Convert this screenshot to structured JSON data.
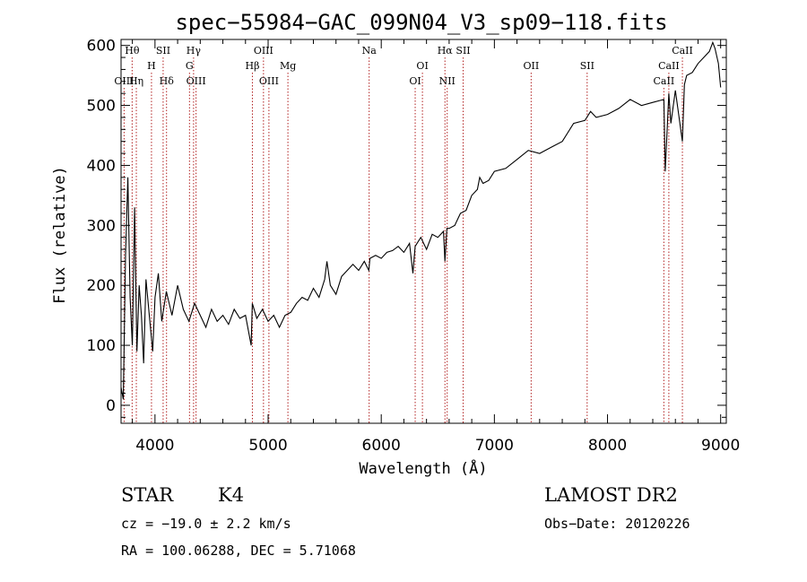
{
  "chart_data": {
    "type": "line",
    "title": "spec−55984−GAC_099N04_V3_sp09−118.fits",
    "xlabel": "Wavelength (Å)",
    "ylabel": "Flux (relative)",
    "xlim": [
      3700,
      9050
    ],
    "ylim": [
      -30,
      610
    ],
    "xticks": [
      4000,
      5000,
      6000,
      7000,
      8000,
      9000
    ],
    "yticks": [
      0,
      100,
      200,
      300,
      400,
      500,
      600
    ],
    "grid": false,
    "line_color": "#000000",
    "marker_color": "#b22222",
    "spectrum": {
      "x": [
        3700,
        3720,
        3740,
        3760,
        3780,
        3800,
        3820,
        3840,
        3860,
        3880,
        3900,
        3920,
        3950,
        3980,
        4000,
        4030,
        4060,
        4100,
        4150,
        4200,
        4250,
        4300,
        4350,
        4400,
        4450,
        4500,
        4550,
        4600,
        4650,
        4700,
        4750,
        4800,
        4850,
        4860,
        4900,
        4950,
        5000,
        5050,
        5100,
        5150,
        5200,
        5250,
        5300,
        5350,
        5400,
        5450,
        5500,
        5520,
        5550,
        5600,
        5650,
        5700,
        5750,
        5800,
        5850,
        5890,
        5900,
        5950,
        6000,
        6050,
        6100,
        6150,
        6200,
        6250,
        6280,
        6300,
        6350,
        6400,
        6450,
        6500,
        6550,
        6563,
        6580,
        6600,
        6650,
        6700,
        6750,
        6800,
        6850,
        6870,
        6900,
        6950,
        7000,
        7100,
        7200,
        7300,
        7400,
        7500,
        7600,
        7700,
        7800,
        7850,
        7900,
        8000,
        8100,
        8200,
        8300,
        8400,
        8498,
        8510,
        8542,
        8560,
        8600,
        8662,
        8680,
        8700,
        8750,
        8800,
        8850,
        8900,
        8930,
        8950,
        8980,
        9000
      ],
      "y": [
        30,
        10,
        250,
        380,
        180,
        100,
        330,
        90,
        200,
        150,
        70,
        210,
        150,
        90,
        180,
        220,
        140,
        190,
        150,
        200,
        160,
        140,
        170,
        150,
        130,
        160,
        140,
        150,
        135,
        160,
        145,
        150,
        100,
        170,
        145,
        160,
        140,
        150,
        130,
        150,
        155,
        170,
        180,
        175,
        195,
        180,
        210,
        240,
        200,
        185,
        215,
        225,
        235,
        225,
        240,
        225,
        245,
        250,
        245,
        255,
        258,
        265,
        255,
        270,
        220,
        265,
        280,
        260,
        285,
        280,
        290,
        240,
        295,
        295,
        300,
        320,
        325,
        350,
        360,
        380,
        370,
        375,
        390,
        395,
        410,
        425,
        420,
        430,
        440,
        470,
        475,
        490,
        480,
        485,
        495,
        510,
        500,
        505,
        510,
        390,
        520,
        470,
        525,
        440,
        535,
        550,
        555,
        570,
        580,
        590,
        605,
        595,
        570,
        530
      ]
    },
    "line_markers": [
      {
        "label": "Hθ",
        "x": 3798,
        "row": 0
      },
      {
        "label": "OIII",
        "x": 3727,
        "row": 3
      },
      {
        "label": "Hη",
        "x": 3835,
        "row": 3
      },
      {
        "label": "H",
        "x": 3969,
        "row": 1
      },
      {
        "label": "SII",
        "x": 4072,
        "row": 0
      },
      {
        "label": "Hδ",
        "x": 4102,
        "row": 3
      },
      {
        "label": "Hγ",
        "x": 4341,
        "row": 0
      },
      {
        "label": "G",
        "x": 4305,
        "row": 1
      },
      {
        "label": "OIII",
        "x": 4363,
        "row": 3
      },
      {
        "label": "OIII",
        "x": 4959,
        "row": 0
      },
      {
        "label": "Hβ",
        "x": 4861,
        "row": 1
      },
      {
        "label": "OIII",
        "x": 5007,
        "row": 3
      },
      {
        "label": "Mg",
        "x": 5175,
        "row": 1
      },
      {
        "label": "Na",
        "x": 5893,
        "row": 0
      },
      {
        "label": "OI",
        "x": 6364,
        "row": 1
      },
      {
        "label": "OI",
        "x": 6300,
        "row": 3
      },
      {
        "label": "Hα",
        "x": 6563,
        "row": 0
      },
      {
        "label": "SII",
        "x": 6724,
        "row": 0
      },
      {
        "label": "NII",
        "x": 6583,
        "row": 3
      },
      {
        "label": "OII",
        "x": 7325,
        "row": 1
      },
      {
        "label": "SII",
        "x": 7820,
        "row": 1
      },
      {
        "label": "CaII",
        "x": 8662,
        "row": 0
      },
      {
        "label": "CaII",
        "x": 8542,
        "row": 1
      },
      {
        "label": "CaII",
        "x": 8498,
        "row": 3
      }
    ]
  },
  "info": {
    "object_type": "STAR",
    "subclass": "K4",
    "survey": "LAMOST DR2",
    "cz": "cz = −19.0 ± 2.2 km/s",
    "obs_date": "Obs−Date: 20120226",
    "coords": "RA = 100.06288, DEC =   5.71068"
  }
}
